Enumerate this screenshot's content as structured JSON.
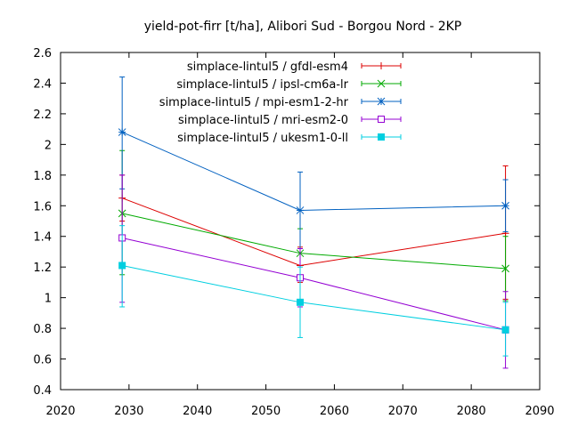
{
  "chart_data": {
    "type": "line",
    "title": "yield-pot-firr [t/ha], Alibori Sud - Borgou Nord - 2KP",
    "xlabel": "",
    "ylabel": "",
    "xlim": [
      2020,
      2090
    ],
    "ylim": [
      0.4,
      2.6
    ],
    "x_ticks": [
      "2020",
      "2030",
      "2040",
      "2050",
      "2060",
      "2070",
      "2080",
      "2090"
    ],
    "y_ticks": [
      "0.4",
      "0.6",
      "0.8",
      "1",
      "1.2",
      "1.4",
      "1.6",
      "1.8",
      "2",
      "2.2",
      "2.4",
      "2.6"
    ],
    "grid": false,
    "legend_position": "top-right",
    "series": [
      {
        "name": "simplace-lintul5 / gfdl-esm4",
        "color": "#dd0000",
        "marker": "plus",
        "points": [
          {
            "x": 2029,
            "y": 1.65,
            "low": 1.5,
            "high": 1.8
          },
          {
            "x": 2055,
            "y": 1.21,
            "low": 1.1,
            "high": 1.33
          },
          {
            "x": 2085,
            "y": 1.42,
            "low": 0.99,
            "high": 1.86
          }
        ]
      },
      {
        "name": "simplace-lintul5 / ipsl-cm6a-lr",
        "color": "#00aa00",
        "marker": "cross",
        "points": [
          {
            "x": 2029,
            "y": 1.55,
            "low": 1.15,
            "high": 1.96
          },
          {
            "x": 2055,
            "y": 1.29,
            "low": 1.13,
            "high": 1.45
          },
          {
            "x": 2085,
            "y": 1.19,
            "low": 0.98,
            "high": 1.4
          }
        ]
      },
      {
        "name": "simplace-lintul5 / mpi-esm1-2-hr",
        "color": "#0060c0",
        "marker": "star",
        "points": [
          {
            "x": 2029,
            "y": 2.08,
            "low": 1.71,
            "high": 2.44
          },
          {
            "x": 2055,
            "y": 1.57,
            "low": 1.32,
            "high": 1.82
          },
          {
            "x": 2085,
            "y": 1.6,
            "low": 1.43,
            "high": 1.77
          }
        ]
      },
      {
        "name": "simplace-lintul5 / mri-esm2-0",
        "color": "#9400d3",
        "marker": "square-open",
        "points": [
          {
            "x": 2029,
            "y": 1.39,
            "low": 0.97,
            "high": 1.8
          },
          {
            "x": 2055,
            "y": 1.13,
            "low": 0.94,
            "high": 1.32
          },
          {
            "x": 2085,
            "y": 0.79,
            "low": 0.54,
            "high": 1.04
          }
        ]
      },
      {
        "name": "simplace-lintul5 / ukesm1-0-ll",
        "color": "#00cfe0",
        "marker": "square-filled",
        "points": [
          {
            "x": 2029,
            "y": 1.21,
            "low": 0.94,
            "high": 1.47
          },
          {
            "x": 2055,
            "y": 0.97,
            "low": 0.74,
            "high": 1.2
          },
          {
            "x": 2085,
            "y": 0.79,
            "low": 0.62,
            "high": 0.97
          }
        ]
      }
    ]
  }
}
